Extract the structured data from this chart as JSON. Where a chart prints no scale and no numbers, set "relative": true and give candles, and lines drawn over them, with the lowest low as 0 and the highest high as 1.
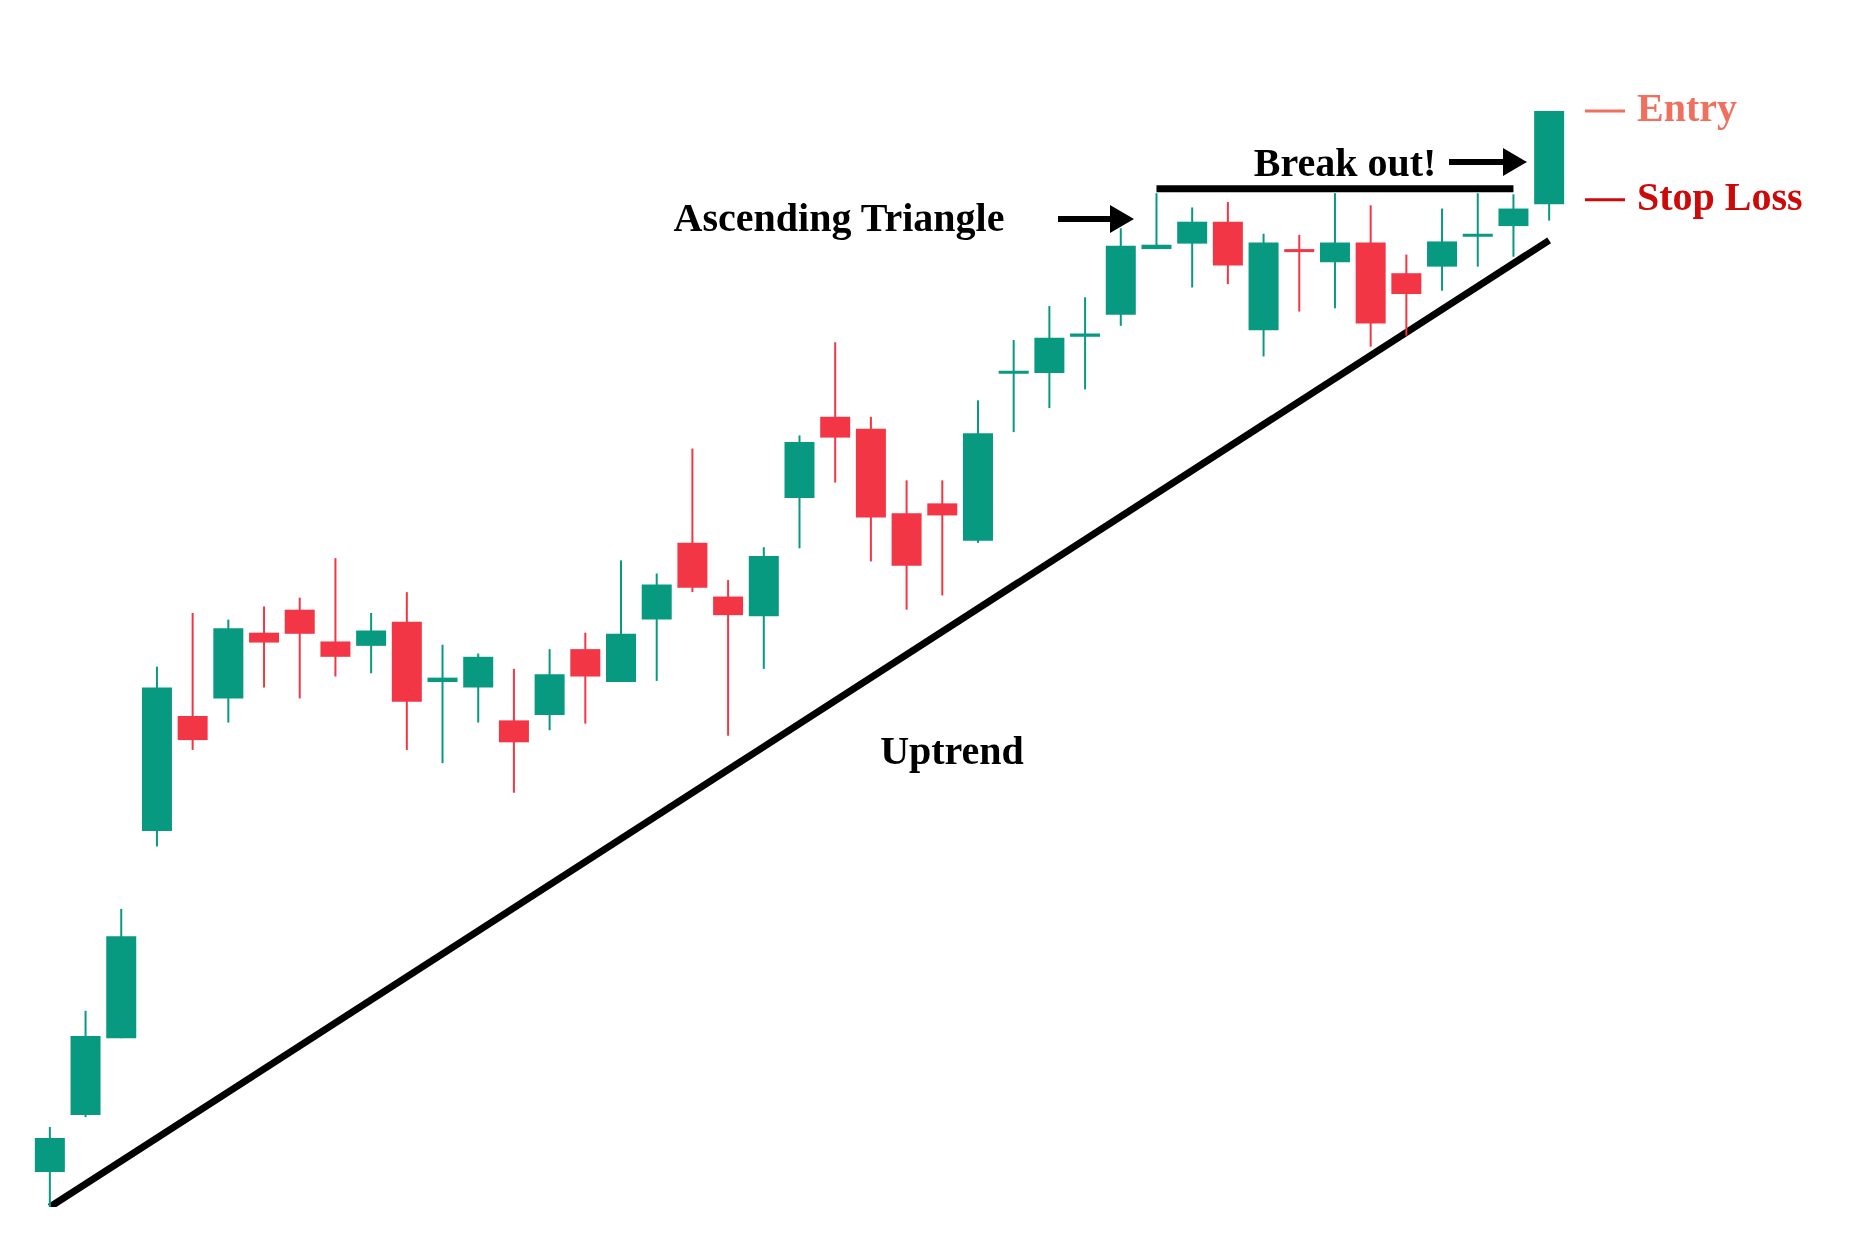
{
  "chart_data": {
    "type": "candlestick",
    "relative": true,
    "legend": false,
    "categories": [
      null,
      null,
      null,
      null,
      null,
      null,
      null,
      null,
      null,
      null,
      null,
      null,
      null,
      null,
      null,
      null,
      null,
      null,
      null,
      null,
      null,
      null,
      null,
      null,
      null,
      null,
      null,
      null,
      null,
      null,
      null,
      null,
      null,
      null,
      null,
      null,
      null,
      null,
      null,
      null,
      null,
      null,
      null
    ],
    "ohlc": [
      [
        0.032,
        0.073,
        0,
        0.063
      ],
      [
        0.084,
        0.179,
        0.082,
        0.156
      ],
      [
        0.154,
        0.272,
        0.154,
        0.247
      ],
      [
        0.343,
        0.493,
        0.329,
        0.474
      ],
      [
        0.448,
        0.542,
        0.417,
        0.426
      ],
      [
        0.464,
        0.536,
        0.442,
        0.528
      ],
      [
        0.524,
        0.548,
        0.474,
        0.515
      ],
      [
        0.545,
        0.556,
        0.464,
        0.523
      ],
      [
        0.516,
        0.592,
        0.484,
        0.502
      ],
      [
        0.512,
        0.542,
        0.487,
        0.526
      ],
      [
        0.534,
        0.561,
        0.417,
        0.461
      ],
      [
        0.479,
        0.513,
        0.405,
        0.483
      ],
      [
        0.474,
        0.505,
        0.442,
        0.502
      ],
      [
        0.444,
        0.491,
        0.378,
        0.424
      ],
      [
        0.449,
        0.509,
        0.435,
        0.486
      ],
      [
        0.509,
        0.524,
        0.441,
        0.484
      ],
      [
        0.479,
        0.59,
        0.479,
        0.523
      ],
      [
        0.536,
        0.578,
        0.48,
        0.568
      ],
      [
        0.606,
        0.692,
        0.561,
        0.565
      ],
      [
        0.557,
        0.572,
        0.43,
        0.54
      ],
      [
        0.539,
        0.602,
        0.491,
        0.594
      ],
      [
        0.647,
        0.704,
        0.601,
        0.698
      ],
      [
        0.721,
        0.789,
        0.661,
        0.702
      ],
      [
        0.71,
        0.721,
        0.589,
        0.629
      ],
      [
        0.633,
        0.663,
        0.545,
        0.585
      ],
      [
        0.642,
        0.663,
        0.558,
        0.631
      ],
      [
        0.608,
        0.736,
        0.606,
        0.706
      ],
      [
        0.761,
        0.791,
        0.707,
        0.763
      ],
      [
        0.761,
        0.822,
        0.729,
        0.793
      ],
      [
        0.794,
        0.83,
        0.746,
        0.797
      ],
      [
        0.814,
        0.893,
        0.804,
        0.877
      ],
      [
        0.874,
        0.925,
        0.874,
        0.878
      ],
      [
        0.879,
        0.912,
        0.839,
        0.899
      ],
      [
        0.899,
        0.917,
        0.842,
        0.859
      ],
      [
        0.8,
        0.888,
        0.776,
        0.88
      ],
      [
        0.874,
        0.887,
        0.817,
        0.873
      ],
      [
        0.862,
        0.925,
        0.82,
        0.88
      ],
      [
        0.88,
        0.914,
        0.785,
        0.806
      ],
      [
        0.852,
        0.869,
        0.795,
        0.833
      ],
      [
        0.858,
        0.911,
        0.836,
        0.881
      ],
      [
        0.887,
        0.925,
        0.858,
        0.888
      ],
      [
        0.895,
        0.924,
        0.867,
        0.911
      ],
      [
        0.915,
        1,
        0.9,
        1
      ]
    ],
    "colors": [
      "#089981",
      "#089981",
      "#089981",
      "#089981",
      "#f23645",
      "#089981",
      "#f23645",
      "#f23645",
      "#f23645",
      "#089981",
      "#f23645",
      "#089981",
      "#089981",
      "#f23645",
      "#089981",
      "#f23645",
      "#089981",
      "#089981",
      "#f23645",
      "#f23645",
      "#089981",
      "#089981",
      "#f23645",
      "#f23645",
      "#f23645",
      "#f23645",
      "#089981",
      "#089981",
      "#089981",
      "#089981",
      "#089981",
      "#089981",
      "#089981",
      "#f23645",
      "#089981",
      "#f23645",
      "#089981",
      "#f23645",
      "#f23645",
      "#089981",
      "#089981",
      "#089981",
      "#089981"
    ],
    "series": [
      {
        "type": "line",
        "color": "#000000",
        "values": [
          0,
          null,
          null,
          null,
          null,
          null,
          null,
          null,
          null,
          null,
          null,
          null,
          null,
          null,
          null,
          null,
          null,
          null,
          null,
          null,
          null,
          null,
          null,
          null,
          null,
          null,
          null,
          null,
          null,
          null,
          null,
          null,
          null,
          null,
          null,
          null,
          null,
          null,
          null,
          null,
          null,
          null,
          0.882
        ]
      },
      {
        "type": "line",
        "color": "#000000",
        "values": [
          null,
          null,
          null,
          null,
          null,
          null,
          null,
          null,
          null,
          null,
          null,
          null,
          null,
          null,
          null,
          null,
          null,
          null,
          null,
          null,
          null,
          null,
          null,
          null,
          null,
          null,
          null,
          null,
          null,
          null,
          null,
          0.929,
          null,
          null,
          null,
          null,
          null,
          null,
          null,
          null,
          null,
          0.929,
          null
        ]
      }
    ],
    "ref_lines": [
      {
        "axis": "y",
        "value": 1,
        "label": "Entry",
        "color": "#f07060"
      },
      {
        "axis": "y",
        "value": 0.919,
        "label": "Stop Loss",
        "color": "#cc0a0a"
      }
    ],
    "annotations": [
      "Ascending Triangle",
      "Break out!",
      "Uptrend"
    ]
  }
}
